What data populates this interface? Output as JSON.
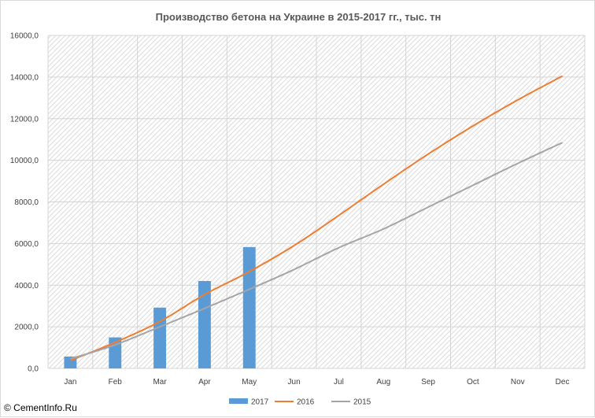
{
  "chart_data": {
    "type": "bar",
    "title": "Производство бетона на Украине в 2015-2017 гг., тыс. тн",
    "xlabel": "",
    "ylabel": "",
    "categories": [
      "Jan",
      "Feb",
      "Mar",
      "Apr",
      "May",
      "Jun",
      "Jul",
      "Aug",
      "Sep",
      "Oct",
      "Nov",
      "Dec"
    ],
    "yticks": [
      "0,0",
      "2000,0",
      "4000,0",
      "6000,0",
      "8000,0",
      "10000,0",
      "12000,0",
      "14000,0",
      "16000,0"
    ],
    "ylim": [
      0,
      16000
    ],
    "grid": true,
    "legend_position": "bottom",
    "series": [
      {
        "name": "2017",
        "type": "bar",
        "color": "#5b9bd5",
        "values": [
          570,
          1490,
          2920,
          4200,
          5830,
          null,
          null,
          null,
          null,
          null,
          null,
          null
        ]
      },
      {
        "name": "2016",
        "type": "line",
        "color": "#ed7d31",
        "values": [
          380,
          1250,
          2250,
          3550,
          4650,
          5900,
          7350,
          8850,
          10300,
          11650,
          12900,
          14050
        ]
      },
      {
        "name": "2015",
        "type": "line",
        "color": "#a5a5a5",
        "values": [
          460,
          1130,
          2000,
          2880,
          3800,
          4750,
          5800,
          6700,
          7750,
          8800,
          9850,
          10850
        ]
      }
    ]
  },
  "watermark": "© CementInfo.Ru"
}
